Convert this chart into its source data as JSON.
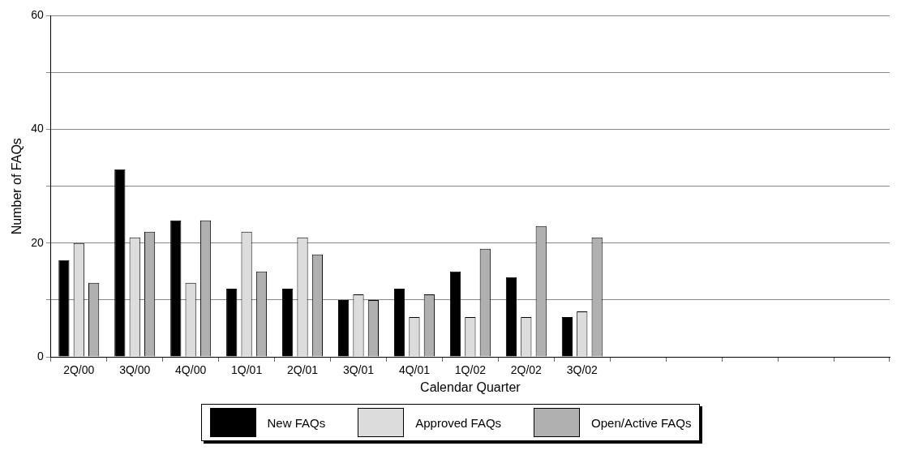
{
  "chart_data": {
    "type": "bar",
    "xlabel": "Calendar Quarter",
    "ylabel": "Number of FAQs",
    "categories": [
      "2Q/00",
      "3Q/00",
      "4Q/00",
      "1Q/01",
      "2Q/01",
      "3Q/01",
      "4Q/01",
      "1Q/02",
      "2Q/02",
      "3Q/02",
      null,
      null,
      null,
      null,
      null
    ],
    "series": [
      {
        "name": "New FAQs",
        "color": "#000000",
        "values": [
          17,
          33,
          24,
          12,
          12,
          10,
          12,
          15,
          14,
          7,
          null,
          null,
          null,
          null,
          null
        ]
      },
      {
        "name": "Approved FAQs",
        "color": "#dcdcdc",
        "values": [
          20,
          21,
          13,
          22,
          21,
          11,
          7,
          7,
          7,
          8,
          null,
          null,
          null,
          null,
          null
        ]
      },
      {
        "name": "Open/Active FAQs",
        "color": "#b0b0b0",
        "values": [
          13,
          22,
          24,
          15,
          18,
          10,
          11,
          19,
          23,
          21,
          null,
          null,
          null,
          null,
          null
        ]
      }
    ],
    "ylim": [
      0,
      60
    ],
    "yticks": [
      0,
      {
        "value": 10,
        "label": null
      },
      20,
      {
        "value": 30,
        "label": null
      },
      40,
      {
        "value": 50,
        "label": null
      },
      60
    ],
    "grid": "y",
    "legend": "bottom"
  }
}
